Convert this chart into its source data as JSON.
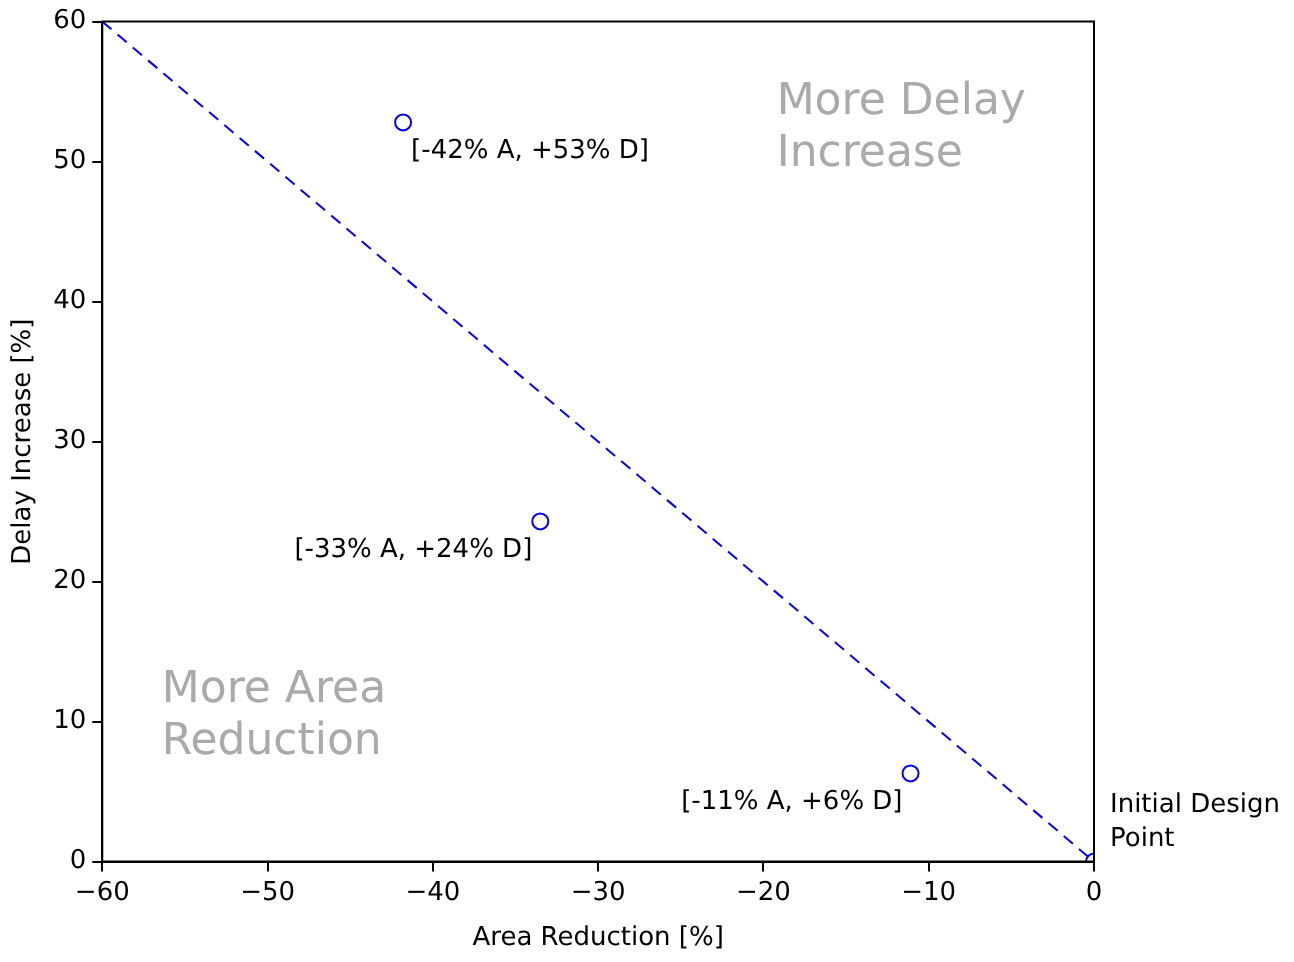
{
  "chart_data": {
    "type": "scatter",
    "xlabel": "Area Reduction [%]",
    "ylabel": "Delay Increase [%]",
    "xlim": [
      -60,
      0
    ],
    "ylim": [
      0,
      60
    ],
    "xticks": [
      {
        "value": -60,
        "label": "−60"
      },
      {
        "value": -50,
        "label": "−50"
      },
      {
        "value": -40,
        "label": "−40"
      },
      {
        "value": -30,
        "label": "−30"
      },
      {
        "value": -20,
        "label": "−20"
      },
      {
        "value": -10,
        "label": "−10"
      },
      0
    ],
    "yticks": [
      0,
      10,
      20,
      30,
      40,
      50,
      60
    ],
    "grid": false,
    "legend": false,
    "marker": "circle",
    "series": [
      {
        "type": "scatter",
        "color": "#0000ff",
        "x": [
          -41.8,
          -33.5,
          -11.1,
          0
        ],
        "values": [
          52.8,
          24.3,
          6.3,
          0
        ]
      },
      {
        "type": "line",
        "color": "#0000ff",
        "line_style": "dashed",
        "marker": "none",
        "x": [
          -60,
          0
        ],
        "values": [
          60,
          0
        ]
      }
    ],
    "annotations": [
      {
        "text": "[-42% A, +53% D]",
        "x": -41.8,
        "y": 52.8
      },
      {
        "text": "[-33% A, +24% D]",
        "x": -33.5,
        "y": 24.3
      },
      {
        "text": "[-11% A, +6% D]",
        "x": -11.1,
        "y": 6.3
      },
      {
        "text": "Initial Design Point",
        "x": 0,
        "y": 0
      },
      "More Delay Increase",
      "More Area Reduction"
    ]
  }
}
